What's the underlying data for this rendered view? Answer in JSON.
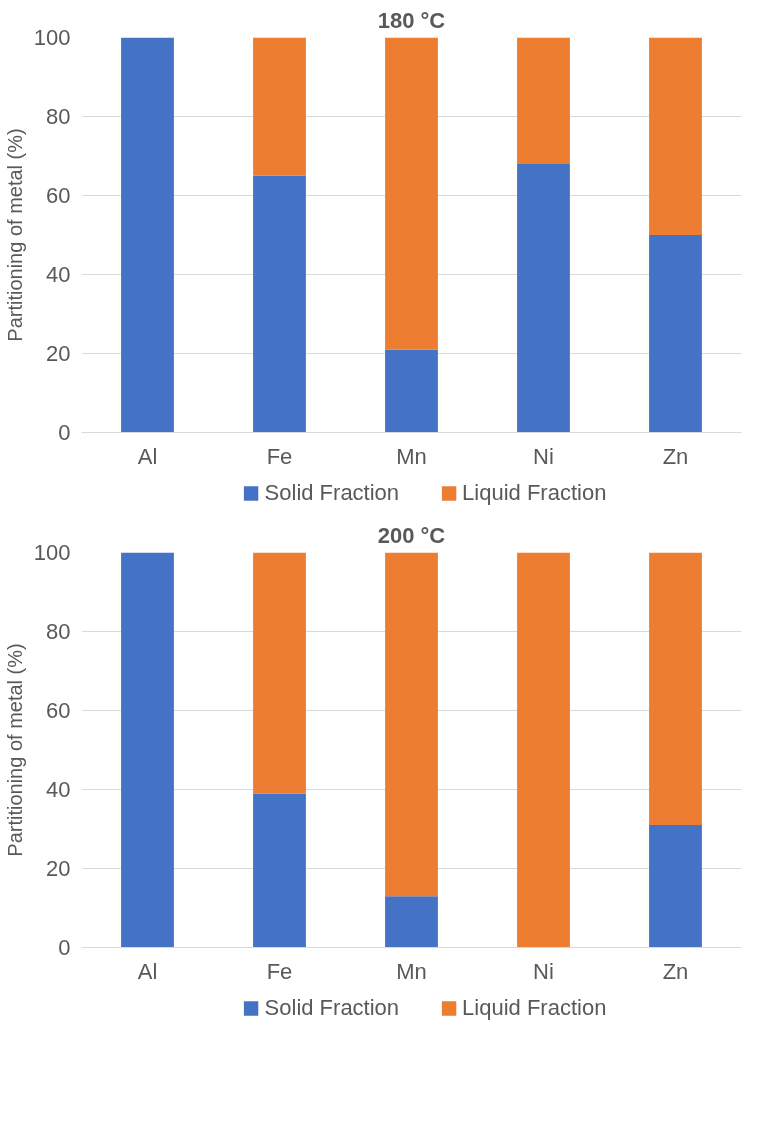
{
  "chart_data": [
    {
      "type": "bar",
      "title": "180 °C",
      "ylabel": "Partitioning of metal (%)",
      "categories": [
        "Al",
        "Fe",
        "Mn",
        "Ni",
        "Zn"
      ],
      "stacked": true,
      "ylim": [
        0,
        100
      ],
      "yticks": [
        0,
        20,
        40,
        60,
        80,
        100
      ],
      "grid": "y",
      "legend": "bottom",
      "series": [
        {
          "name": "Solid Fraction",
          "color": "#4472c4",
          "values": [
            100,
            65,
            21,
            68,
            50
          ]
        },
        {
          "name": "Liquid Fraction",
          "color": "#ed7d31",
          "values": [
            0,
            35,
            79,
            32,
            50
          ]
        }
      ]
    },
    {
      "type": "bar",
      "title": "200 °C",
      "ylabel": "Partitioning of metal (%)",
      "categories": [
        "Al",
        "Fe",
        "Mn",
        "Ni",
        "Zn"
      ],
      "stacked": true,
      "ylim": [
        0,
        100
      ],
      "yticks": [
        0,
        20,
        40,
        60,
        80,
        100
      ],
      "grid": "y",
      "legend": "bottom",
      "series": [
        {
          "name": "Solid Fraction",
          "color": "#4472c4",
          "values": [
            100,
            39,
            13,
            0,
            31
          ]
        },
        {
          "name": "Liquid Fraction",
          "color": "#ed7d31",
          "values": [
            0,
            61,
            87,
            100,
            69
          ]
        }
      ]
    }
  ]
}
